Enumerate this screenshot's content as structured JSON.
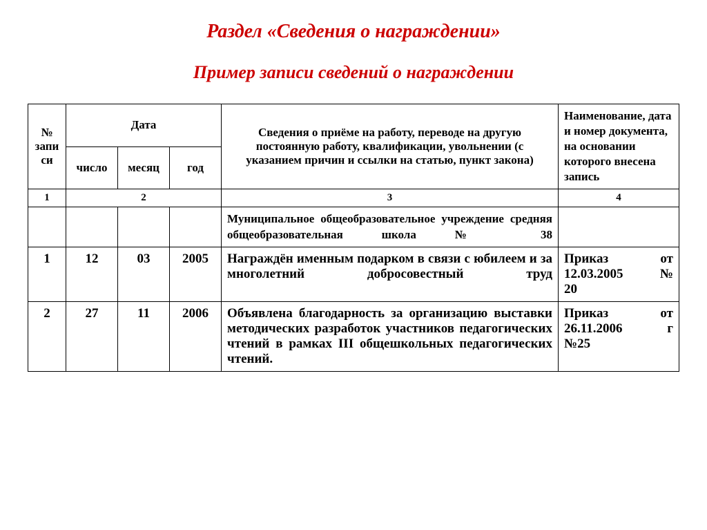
{
  "heading1": "Раздел «Сведения о награждении»",
  "heading2": "Пример записи сведений о награждении",
  "header": {
    "recNo": "№ запи си",
    "date": "Дата",
    "day": "число",
    "month": "месяц",
    "year": "год",
    "info": "Сведения о приёме на работу, переводе на другую постоянную работу, квалификации, увольнении (с указанием причин и ссылки на статью, пункт закона)",
    "doc": "Наименование, дата и номер документа, на основании которого внесена запись"
  },
  "colNums": {
    "c1": "1",
    "c2": "2",
    "c3": "3",
    "c4": "4"
  },
  "orgRow": {
    "text": "Муниципальное общеобразовательное учреждение средняя общеобразовательная школа № 38"
  },
  "rows": [
    {
      "n": "1",
      "d": "12",
      "m": "03",
      "y": "2005",
      "info": "Награждён именным подарком в связи с юбилеем и за многолетний добросовестный труд",
      "ord1a": "Приказ",
      "ord1b": "от",
      "ord2a": "12.03.2005",
      "ord2b": "№",
      "ord3": "20"
    },
    {
      "n": "2",
      "d": "27",
      "m": "11",
      "y": "2006",
      "info": "Объявлена благодарность за организацию выставки методических разработок участников педагогических чтений в рамках III общешкольных педагогических чтений.",
      "ord1a": "Приказ",
      "ord1b": "от",
      "ord2a": "26.11.2006",
      "ord2b": "г",
      "ord3": "№25"
    }
  ]
}
